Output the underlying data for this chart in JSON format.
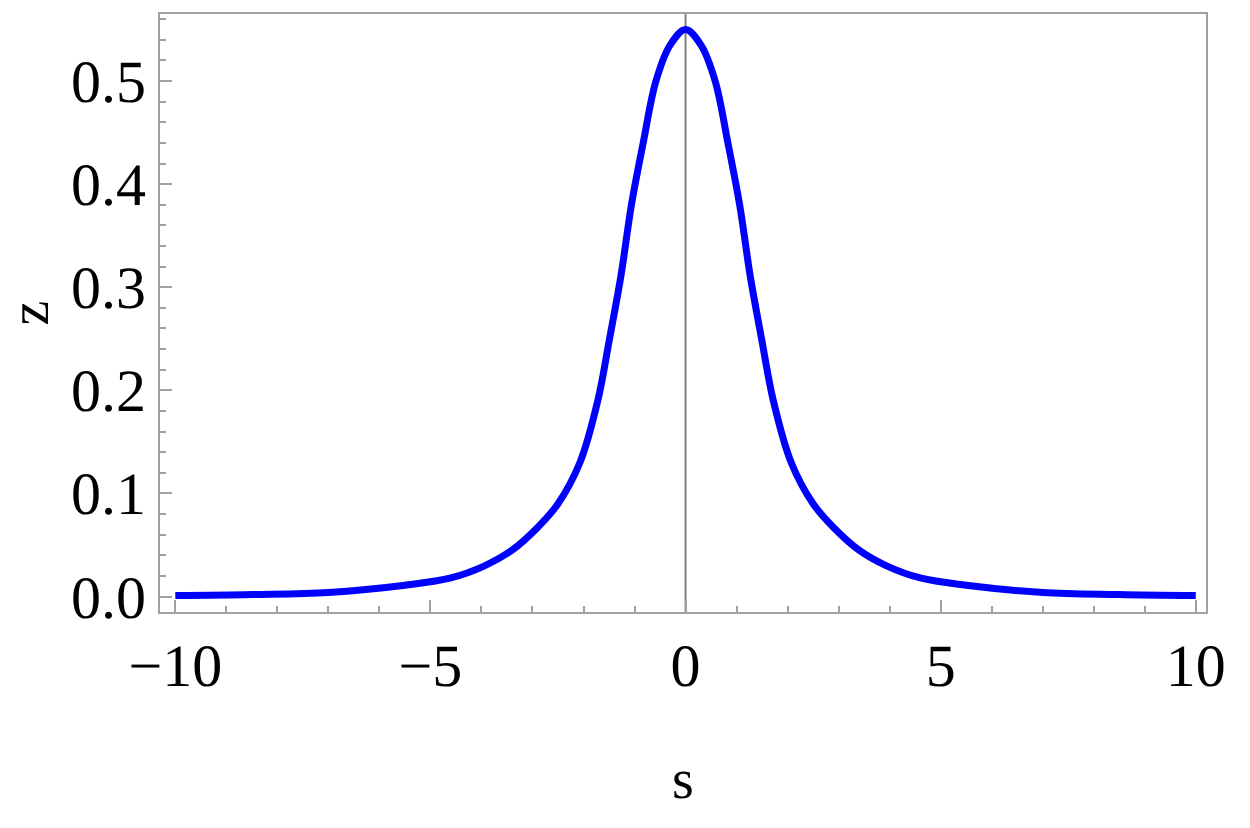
{
  "chart_data": {
    "type": "line",
    "xlabel": "s",
    "ylabel": "z",
    "x": [
      -10,
      -8.5,
      -7,
      -5.5,
      -4.6,
      -3.93,
      -3.4,
      -2.9,
      -2.5,
      -2.07,
      -1.72,
      -1.49,
      -1.27,
      -1.06,
      -0.83,
      -0.58,
      -0.3,
      0,
      0.3,
      0.58,
      0.83,
      1.06,
      1.27,
      1.49,
      1.72,
      2.07,
      2.5,
      2.9,
      3.4,
      3.93,
      4.6,
      5.5,
      7,
      8.5,
      10
    ],
    "series": [
      {
        "color": "#0000ff",
        "values": [
          0.001,
          0.002,
          0.004,
          0.011,
          0.018,
          0.03,
          0.045,
          0.067,
          0.09,
          0.13,
          0.19,
          0.25,
          0.31,
          0.38,
          0.44,
          0.5,
          0.535,
          0.55,
          0.535,
          0.5,
          0.44,
          0.38,
          0.31,
          0.25,
          0.19,
          0.13,
          0.09,
          0.067,
          0.045,
          0.03,
          0.018,
          0.011,
          0.004,
          0.002,
          0.001
        ]
      }
    ],
    "xlim": [
      -10.3,
      10.2
    ],
    "ylim": [
      -0.015,
      0.565
    ],
    "xticks": [
      {
        "value": -10,
        "label": "−10"
      },
      {
        "value": -5,
        "label": "−5"
      },
      0,
      5,
      10
    ],
    "yticks": [
      {
        "value": 0,
        "label": "0.0"
      },
      0.1,
      0.2,
      0.3,
      0.4,
      0.5
    ],
    "ref_lines": [
      {
        "axis": "x",
        "value": 0,
        "color": "#808080"
      }
    ],
    "marker": "none",
    "line_style": "solid"
  }
}
